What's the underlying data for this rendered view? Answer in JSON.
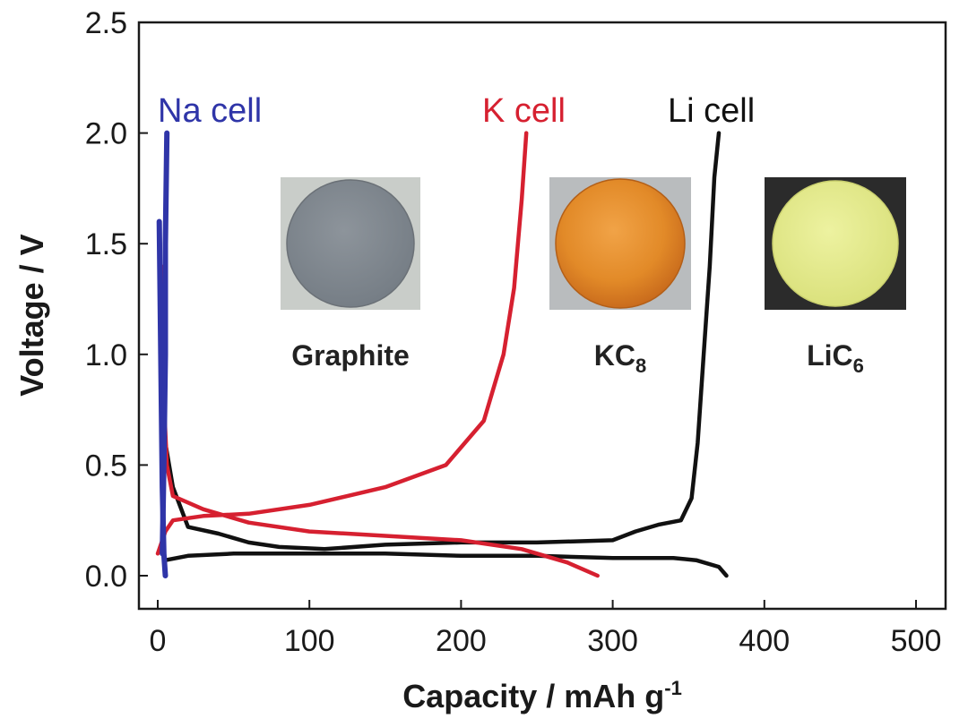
{
  "chart_data": {
    "type": "line",
    "title": "",
    "xlabel": "Capacity / mAh g",
    "xlabel_superscript": "-1",
    "ylabel": "Voltage / V",
    "xlim": [
      -10,
      510
    ],
    "ylim": [
      -0.1,
      2.5
    ],
    "xticks": [
      "0",
      "100",
      "200",
      "300",
      "400",
      "500"
    ],
    "yticks": [
      "0.0",
      "0.5",
      "1.0",
      "1.5",
      "2.0",
      "2.5"
    ],
    "grid": false,
    "series": [
      {
        "name": "Li cell",
        "color": "#111111",
        "segments": [
          [
            [
              5,
              0.07
            ],
            [
              20,
              0.09
            ],
            [
              50,
              0.1
            ],
            [
              100,
              0.1
            ],
            [
              150,
              0.1
            ],
            [
              200,
              0.09
            ],
            [
              250,
              0.09
            ],
            [
              300,
              0.08
            ],
            [
              340,
              0.08
            ],
            [
              355,
              0.07
            ],
            [
              370,
              0.04
            ],
            [
              375,
              0.0
            ]
          ],
          [
            [
              5,
              0.6
            ],
            [
              10,
              0.4
            ],
            [
              20,
              0.22
            ],
            [
              40,
              0.19
            ],
            [
              60,
              0.15
            ],
            [
              80,
              0.13
            ],
            [
              110,
              0.12
            ],
            [
              150,
              0.14
            ],
            [
              200,
              0.15
            ],
            [
              250,
              0.15
            ],
            [
              300,
              0.16
            ],
            [
              315,
              0.2
            ],
            [
              330,
              0.23
            ],
            [
              345,
              0.25
            ],
            [
              352,
              0.35
            ],
            [
              356,
              0.6
            ],
            [
              360,
              1.0
            ],
            [
              364,
              1.4
            ],
            [
              367,
              1.8
            ],
            [
              370,
              2.0
            ]
          ]
        ]
      },
      {
        "name": "K cell",
        "color": "#d62030",
        "segments": [
          [
            [
              2,
              1.4
            ],
            [
              4,
              0.8
            ],
            [
              6,
              0.5
            ],
            [
              10,
              0.36
            ],
            [
              30,
              0.3
            ],
            [
              60,
              0.24
            ],
            [
              100,
              0.2
            ],
            [
              150,
              0.18
            ],
            [
              200,
              0.16
            ],
            [
              240,
              0.12
            ],
            [
              270,
              0.06
            ],
            [
              290,
              0.0
            ]
          ],
          [
            [
              0,
              0.1
            ],
            [
              5,
              0.2
            ],
            [
              10,
              0.25
            ],
            [
              30,
              0.27
            ],
            [
              60,
              0.28
            ],
            [
              100,
              0.32
            ],
            [
              150,
              0.4
            ],
            [
              190,
              0.5
            ],
            [
              215,
              0.7
            ],
            [
              228,
              1.0
            ],
            [
              235,
              1.3
            ],
            [
              240,
              1.7
            ],
            [
              243,
              2.0
            ]
          ]
        ]
      },
      {
        "name": "Na cell",
        "color": "#2f35a8",
        "segments": [
          [
            [
              1,
              1.6
            ],
            [
              2,
              1.0
            ],
            [
              3,
              0.4
            ],
            [
              4,
              0.1
            ],
            [
              5,
              0.0
            ]
          ],
          [
            [
              3,
              0.1
            ],
            [
              4,
              0.5
            ],
            [
              5,
              1.0
            ],
            [
              5,
              1.5
            ],
            [
              6,
              2.0
            ]
          ]
        ]
      }
    ],
    "insets": [
      {
        "label": "Graphite",
        "subscript": "",
        "color": "#838b93"
      },
      {
        "label": "KC",
        "subscript": "8",
        "color": "#e28a28"
      },
      {
        "label": "LiC",
        "subscript": "6",
        "color": "#e3ea8e"
      }
    ]
  }
}
